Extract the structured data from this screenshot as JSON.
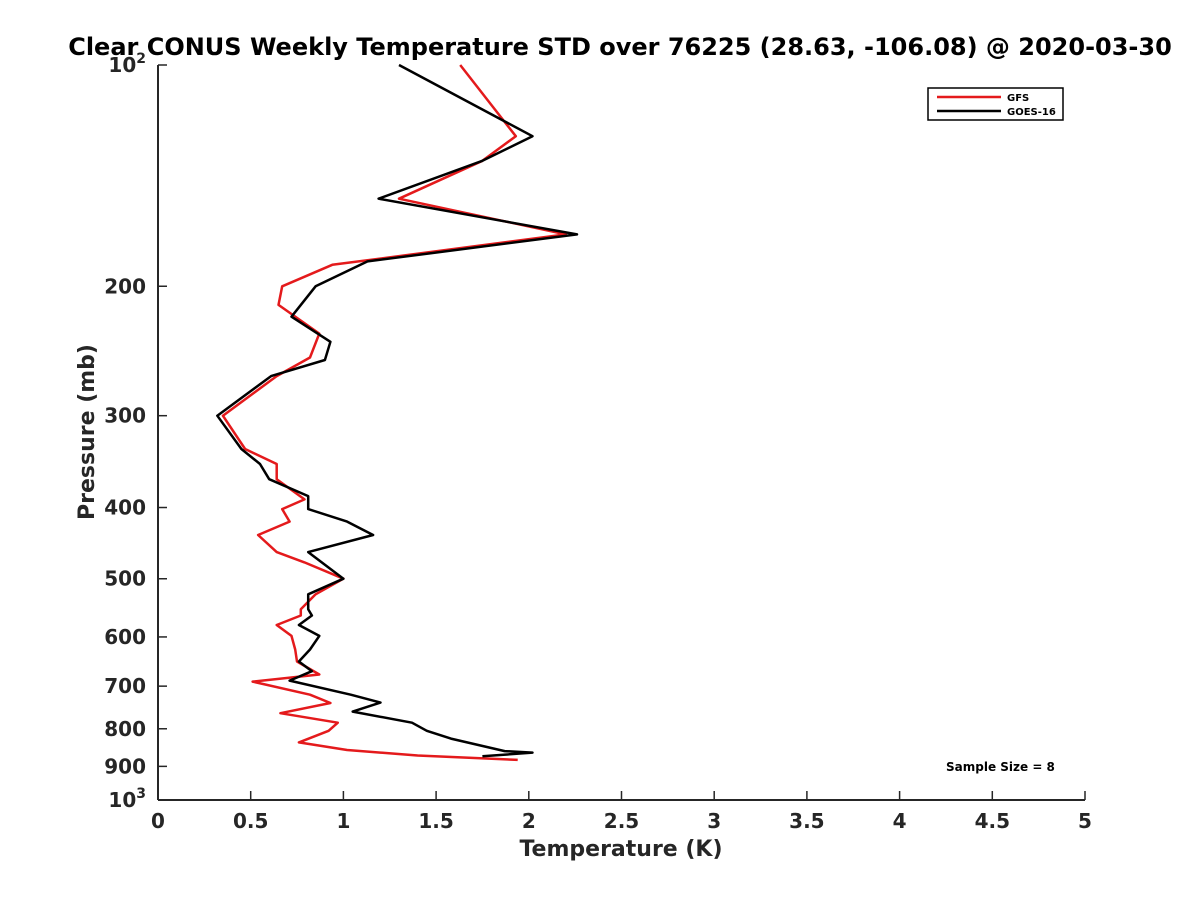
{
  "chart_data": {
    "type": "line",
    "title": "Clear CONUS Weekly Temperature STD over 76225 (28.63, -106.08) @ 2020-03-30",
    "xlabel": "Temperature (K)",
    "ylabel": "Pressure (mb)",
    "xlim": [
      0,
      5
    ],
    "ylim": [
      100,
      1000
    ],
    "y_scale": "log",
    "y_reversed": true,
    "grid": false,
    "legend_position": "top-right",
    "x_ticks": [
      0,
      0.5,
      1,
      1.5,
      2,
      2.5,
      3,
      3.5,
      4,
      4.5,
      5
    ],
    "x_tick_labels": [
      "0",
      "0.5",
      "1",
      "1.5",
      "2",
      "2.5",
      "3",
      "3.5",
      "4",
      "4.5",
      "5"
    ],
    "y_ticks": [
      {
        "value": 100,
        "base": "10",
        "exp": "2"
      },
      {
        "value": 200,
        "label": "200"
      },
      {
        "value": 300,
        "label": "300"
      },
      {
        "value": 400,
        "label": "400"
      },
      {
        "value": 500,
        "label": "500"
      },
      {
        "value": 600,
        "label": "600"
      },
      {
        "value": 700,
        "label": "700"
      },
      {
        "value": 800,
        "label": "800"
      },
      {
        "value": 900,
        "label": "900"
      },
      {
        "value": 1000,
        "base": "10",
        "exp": "3"
      }
    ],
    "annotation": "Sample Size = 8",
    "series": [
      {
        "name": "GFS",
        "color": "#e41a1c",
        "points": [
          [
            1.63,
            100
          ],
          [
            1.93,
            125
          ],
          [
            1.75,
            135
          ],
          [
            1.3,
            152
          ],
          [
            2.2,
            170
          ],
          [
            0.94,
            187
          ],
          [
            0.67,
            200
          ],
          [
            0.65,
            212
          ],
          [
            0.87,
            232
          ],
          [
            0.82,
            250
          ],
          [
            0.64,
            265
          ],
          [
            0.35,
            300
          ],
          [
            0.47,
            333
          ],
          [
            0.64,
            349
          ],
          [
            0.64,
            366
          ],
          [
            0.79,
            390
          ],
          [
            0.67,
            402
          ],
          [
            0.71,
            418
          ],
          [
            0.54,
            436
          ],
          [
            0.64,
            460
          ],
          [
            0.79,
            475
          ],
          [
            1.0,
            500
          ],
          [
            0.85,
            525
          ],
          [
            0.77,
            550
          ],
          [
            0.77,
            561
          ],
          [
            0.64,
            578
          ],
          [
            0.72,
            598
          ],
          [
            0.74,
            624
          ],
          [
            0.75,
            648
          ],
          [
            0.87,
            675
          ],
          [
            0.51,
            690
          ],
          [
            0.82,
            719
          ],
          [
            0.93,
            738
          ],
          [
            0.66,
            762
          ],
          [
            0.97,
            785
          ],
          [
            0.92,
            805
          ],
          [
            0.76,
            835
          ],
          [
            1.02,
            855
          ],
          [
            1.4,
            870
          ],
          [
            1.94,
            882
          ]
        ]
      },
      {
        "name": "GOES-16",
        "color": "#000000",
        "points": [
          [
            1.3,
            100
          ],
          [
            2.02,
            125
          ],
          [
            1.75,
            135
          ],
          [
            1.19,
            152
          ],
          [
            2.26,
            170
          ],
          [
            1.13,
            185
          ],
          [
            0.85,
            200
          ],
          [
            0.72,
            220
          ],
          [
            0.93,
            238
          ],
          [
            0.9,
            252
          ],
          [
            0.61,
            265
          ],
          [
            0.32,
            300
          ],
          [
            0.45,
            333
          ],
          [
            0.55,
            349
          ],
          [
            0.6,
            366
          ],
          [
            0.81,
            386
          ],
          [
            0.81,
            402
          ],
          [
            1.02,
            418
          ],
          [
            1.16,
            436
          ],
          [
            0.81,
            460
          ],
          [
            1.0,
            500
          ],
          [
            0.81,
            525
          ],
          [
            0.81,
            550
          ],
          [
            0.83,
            561
          ],
          [
            0.76,
            578
          ],
          [
            0.87,
            598
          ],
          [
            0.82,
            624
          ],
          [
            0.76,
            648
          ],
          [
            0.83,
            668
          ],
          [
            0.71,
            688
          ],
          [
            1.04,
            719
          ],
          [
            1.2,
            737
          ],
          [
            1.05,
            758
          ],
          [
            1.37,
            785
          ],
          [
            1.45,
            805
          ],
          [
            1.58,
            825
          ],
          [
            1.87,
            858
          ],
          [
            2.02,
            862
          ],
          [
            1.75,
            872
          ]
        ]
      }
    ]
  }
}
